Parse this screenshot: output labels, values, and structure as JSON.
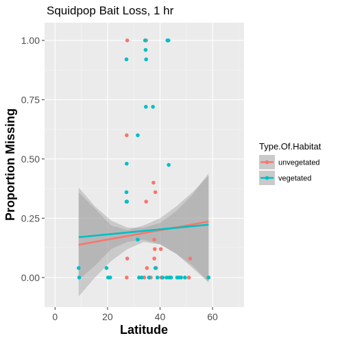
{
  "chart_data": {
    "type": "scatter",
    "title": "Squidpop Bait Loss, 1 hr",
    "xlabel": "Latitude",
    "ylabel": "Proportion Missing",
    "xlim": [
      -4,
      72
    ],
    "ylim": [
      -0.125,
      1.075
    ],
    "x_ticks": [
      0,
      20,
      40,
      60
    ],
    "x_tick_labels": [
      "0",
      "20",
      "40",
      "60"
    ],
    "y_ticks": [
      0,
      0.25,
      0.5,
      0.75,
      1.0
    ],
    "y_tick_labels": [
      "0.00",
      "0.25",
      "0.50",
      "0.75",
      "1.00"
    ],
    "grid": true,
    "legend": {
      "title": "Type.Of.Habitat",
      "position": "right",
      "entries": [
        {
          "label": "unvegetated",
          "color": "#F8766D"
        },
        {
          "label": "vegetated",
          "color": "#00BFC4"
        }
      ]
    },
    "series": [
      {
        "name": "unvegetated",
        "color": "#F8766D",
        "points": [
          [
            27.5,
            1.0
          ],
          [
            27.3,
            0.6
          ],
          [
            27.5,
            0.08
          ],
          [
            27.3,
            0.0
          ],
          [
            34.7,
            1.0
          ],
          [
            34.7,
            0.32
          ],
          [
            35.0,
            0.04
          ],
          [
            34.0,
            0.0
          ],
          [
            37.5,
            0.4
          ],
          [
            38.2,
            0.36
          ],
          [
            37.8,
            0.16
          ],
          [
            38.0,
            0.12
          ],
          [
            40.3,
            0.12
          ],
          [
            37.8,
            0.08
          ],
          [
            38.5,
            0.04
          ],
          [
            40.5,
            0.0
          ],
          [
            36.5,
            0.0
          ],
          [
            51.5,
            0.08
          ],
          [
            51.0,
            0.0
          ]
        ],
        "trend": {
          "start": [
            9.0,
            0.138
          ],
          "end": [
            58.5,
            0.236
          ]
        },
        "band": {
          "x": [
            9.0,
            15.2,
            21.4,
            27.6,
            33.8,
            40.0,
            46.2,
            52.4,
            58.5
          ],
          "lower": [
            -0.08,
            0.0,
            0.07,
            0.12,
            0.15,
            0.14,
            0.1,
            0.04,
            -0.02
          ],
          "upper": [
            0.36,
            0.29,
            0.22,
            0.2,
            0.22,
            0.25,
            0.3,
            0.36,
            0.43
          ]
        }
      },
      {
        "name": "vegetated",
        "color": "#00BFC4",
        "points": [
          [
            34.3,
            1.0
          ],
          [
            34.5,
            0.96
          ],
          [
            34.7,
            0.92
          ],
          [
            27.2,
            0.92
          ],
          [
            43.2,
            1.0
          ],
          [
            42.8,
            1.0
          ],
          [
            43.0,
            1.0
          ],
          [
            34.6,
            0.72
          ],
          [
            37.3,
            0.72
          ],
          [
            31.5,
            0.6
          ],
          [
            27.3,
            0.48
          ],
          [
            43.3,
            0.475
          ],
          [
            27.2,
            0.36
          ],
          [
            27.2,
            0.32
          ],
          [
            27.4,
            0.32
          ],
          [
            31.5,
            0.16
          ],
          [
            9.0,
            0.04
          ],
          [
            9.2,
            0.0
          ],
          [
            19.6,
            0.04
          ],
          [
            20.2,
            0.0
          ],
          [
            21.0,
            0.0
          ],
          [
            32.0,
            0.0
          ],
          [
            33.0,
            0.0
          ],
          [
            35.8,
            0.0
          ],
          [
            38.2,
            0.04
          ],
          [
            39.0,
            0.0
          ],
          [
            41.0,
            0.0
          ],
          [
            42.5,
            0.0
          ],
          [
            43.5,
            0.0
          ],
          [
            44.2,
            0.0
          ],
          [
            46.5,
            0.0
          ],
          [
            47.2,
            0.0
          ],
          [
            48.0,
            0.0
          ],
          [
            49.5,
            0.0
          ],
          [
            58.5,
            0.0
          ]
        ],
        "trend": {
          "start": [
            9.0,
            0.17
          ],
          "end": [
            58.5,
            0.223
          ]
        },
        "band": {
          "x": [
            9.0,
            15.2,
            21.4,
            27.6,
            33.8,
            40.0,
            46.2,
            52.4,
            58.5
          ],
          "lower": [
            -0.01,
            0.05,
            0.12,
            0.15,
            0.16,
            0.14,
            0.1,
            0.05,
            -0.02
          ],
          "upper": [
            0.38,
            0.3,
            0.24,
            0.21,
            0.21,
            0.23,
            0.28,
            0.35,
            0.44
          ]
        }
      }
    ]
  }
}
